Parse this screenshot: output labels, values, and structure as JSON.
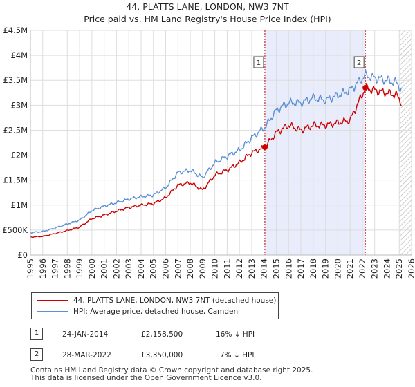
{
  "title_line1": "44, PLATTS LANE, LONDON, NW3 7NT",
  "title_line2": "Price paid vs. HM Land Registry's House Price Index (HPI)",
  "chart_data": {
    "type": "line",
    "title": "44, PLATTS LANE, LONDON, NW3 7NT — Price paid vs. HM Land Registry's House Price Index (HPI)",
    "xlabel": "",
    "ylabel": "",
    "xlim": [
      1995,
      2026
    ],
    "ylim": [
      0,
      4500000
    ],
    "x_ticks": [
      "1995",
      "1996",
      "1997",
      "1998",
      "1999",
      "2000",
      "2001",
      "2002",
      "2003",
      "2004",
      "2005",
      "2006",
      "2007",
      "2008",
      "2009",
      "2010",
      "2011",
      "2012",
      "2013",
      "2014",
      "2015",
      "2016",
      "2017",
      "2018",
      "2019",
      "2020",
      "2021",
      "2022",
      "2023",
      "2024",
      "2025",
      "2026"
    ],
    "y_ticks": [
      {
        "value": 0,
        "label": "£0"
      },
      {
        "value": 500000,
        "label": "£500K"
      },
      {
        "value": 1000000,
        "label": "£1M"
      },
      {
        "value": 1500000,
        "label": "£1.5M"
      },
      {
        "value": 2000000,
        "label": "£2M"
      },
      {
        "value": 2500000,
        "label": "£2.5M"
      },
      {
        "value": 3000000,
        "label": "£3M"
      },
      {
        "value": 3500000,
        "label": "£3.5M"
      },
      {
        "value": 4000000,
        "label": "£4M"
      },
      {
        "value": 4500000,
        "label": "£4.5M"
      }
    ],
    "grid": true,
    "shaded_period": [
      2014.07,
      2022.24
    ],
    "future_hatch_from": 2025.0,
    "series": [
      {
        "name": "44, PLATTS LANE, LONDON, NW3 7NT (detached house)",
        "color": "#cc0000",
        "points": [
          [
            1995,
            360000
          ],
          [
            1996,
            375000
          ],
          [
            1997,
            430000
          ],
          [
            1998,
            490000
          ],
          [
            1999,
            560000
          ],
          [
            2000,
            730000
          ],
          [
            2001,
            800000
          ],
          [
            2002,
            880000
          ],
          [
            2003,
            950000
          ],
          [
            2004,
            1000000
          ],
          [
            2005,
            1030000
          ],
          [
            2006,
            1150000
          ],
          [
            2007,
            1400000
          ],
          [
            2008,
            1450000
          ],
          [
            2009,
            1300000
          ],
          [
            2010,
            1600000
          ],
          [
            2011,
            1700000
          ],
          [
            2012,
            1850000
          ],
          [
            2013,
            2050000
          ],
          [
            2014.07,
            2158500
          ],
          [
            2015,
            2450000
          ],
          [
            2016,
            2600000
          ],
          [
            2017,
            2500000
          ],
          [
            2018,
            2600000
          ],
          [
            2019,
            2600000
          ],
          [
            2020,
            2650000
          ],
          [
            2021,
            2700000
          ],
          [
            2022.24,
            3350000
          ],
          [
            2023,
            3300000
          ],
          [
            2024,
            3250000
          ],
          [
            2024.8,
            3200000
          ],
          [
            2025.2,
            3050000
          ]
        ]
      },
      {
        "name": "HPI: Average price, detached house, Camden",
        "color": "#5b8fd4",
        "points": [
          [
            1995,
            450000
          ],
          [
            1996,
            470000
          ],
          [
            1997,
            540000
          ],
          [
            1998,
            620000
          ],
          [
            1999,
            700000
          ],
          [
            2000,
            890000
          ],
          [
            2001,
            980000
          ],
          [
            2002,
            1050000
          ],
          [
            2003,
            1120000
          ],
          [
            2004,
            1170000
          ],
          [
            2005,
            1200000
          ],
          [
            2006,
            1350000
          ],
          [
            2007,
            1650000
          ],
          [
            2008,
            1700000
          ],
          [
            2009,
            1550000
          ],
          [
            2010,
            1850000
          ],
          [
            2011,
            1980000
          ],
          [
            2012,
            2100000
          ],
          [
            2013,
            2350000
          ],
          [
            2014.07,
            2560000
          ],
          [
            2015,
            2900000
          ],
          [
            2016,
            3050000
          ],
          [
            2017,
            3050000
          ],
          [
            2018,
            3150000
          ],
          [
            2019,
            3100000
          ],
          [
            2020,
            3200000
          ],
          [
            2021,
            3300000
          ],
          [
            2022.24,
            3600000
          ],
          [
            2023,
            3550000
          ],
          [
            2024,
            3500000
          ],
          [
            2024.8,
            3450000
          ],
          [
            2025.2,
            3300000
          ]
        ]
      }
    ],
    "markers": [
      {
        "label": "1",
        "x": 2014.07,
        "y": 2158500
      },
      {
        "label": "2",
        "x": 2022.24,
        "y": 3350000
      }
    ]
  },
  "legend": {
    "items": [
      {
        "label": "44, PLATTS LANE, LONDON, NW3 7NT (detached house)",
        "color": "#cc0000"
      },
      {
        "label": "HPI: Average price, detached house, Camden",
        "color": "#5b8fd4"
      }
    ]
  },
  "sales": [
    {
      "num": "1",
      "date": "24-JAN-2014",
      "price": "£2,158,500",
      "hpi": "16% ↓ HPI"
    },
    {
      "num": "2",
      "date": "28-MAR-2022",
      "price": "£3,350,000",
      "hpi": "7% ↓ HPI"
    }
  ],
  "footer_line1": "Contains HM Land Registry data © Crown copyright and database right 2025.",
  "footer_line2": "This data is licensed under the Open Government Licence v3.0."
}
